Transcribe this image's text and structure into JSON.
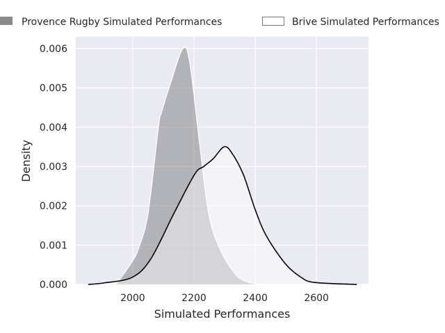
{
  "chart_data": {
    "type": "area",
    "title": "",
    "xlabel": "Simulated Performances",
    "ylabel": "Density",
    "xlim": [
      1814,
      2770
    ],
    "ylim": [
      0,
      0.0063
    ],
    "xticks": [
      2000,
      2200,
      2400,
      2600
    ],
    "xtick_labels": [
      "2000",
      "2200",
      "2400",
      "2600"
    ],
    "yticks": [
      0,
      0.001,
      0.002,
      0.003,
      0.004,
      0.005,
      0.006
    ],
    "ytick_labels": [
      "0.000",
      "0.001",
      "0.002",
      "0.003",
      "0.004",
      "0.005",
      "0.006"
    ],
    "grid": true,
    "legend_placement": "top-outside",
    "series": [
      {
        "name": "Provence Rugby Simulated Performances",
        "fill": "#8a8a8e",
        "x": [
          1930,
          1948,
          1998,
          2020,
          2050,
          2084,
          2095,
          2127,
          2164,
          2186,
          2218,
          2248,
          2286,
          2339,
          2384,
          2430
        ],
        "y": [
          0,
          4e-05,
          0.00058,
          0.00094,
          0.0018,
          0.004,
          0.0044,
          0.0052,
          0.006,
          0.00565,
          0.0036,
          0.0018,
          0.00088,
          0.00023,
          4e-05,
          0
        ]
      },
      {
        "name": "Brive Simulated Performances",
        "fill": "#ffffff",
        "x": [
          1855,
          1907,
          1998,
          2059,
          2134,
          2202,
          2232,
          2263,
          2298,
          2323,
          2361,
          2400,
          2436,
          2498,
          2550,
          2595,
          2732
        ],
        "y": [
          0,
          4e-05,
          0.00018,
          0.00065,
          0.0018,
          0.0028,
          0.003,
          0.0032,
          0.0035,
          0.00335,
          0.0028,
          0.0019,
          0.00124,
          0.00053,
          0.00018,
          5e-05,
          0
        ]
      }
    ]
  }
}
